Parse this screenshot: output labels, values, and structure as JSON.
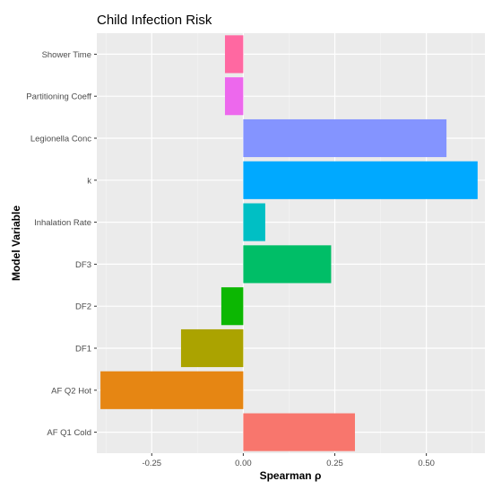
{
  "chart_data": {
    "type": "bar",
    "orientation": "horizontal",
    "title": "Child Infection Risk",
    "xlabel": "Spearman ρ",
    "ylabel": "Model Variable",
    "xlim": [
      -0.4,
      0.66
    ],
    "xticks": [
      -0.25,
      0.0,
      0.25,
      0.5
    ],
    "xtick_labels": [
      "-0.25",
      "0.00",
      "0.25",
      "0.50"
    ],
    "grid": true,
    "categories": [
      "AF Q1 Cold",
      "AF Q2 Hot",
      "DF1",
      "DF2",
      "DF3",
      "Inhalation Rate",
      "k",
      "Legionella Conc",
      "Partitioning Coeff",
      "Shower Time"
    ],
    "values": [
      0.305,
      -0.39,
      -0.17,
      -0.06,
      0.24,
      0.06,
      0.64,
      0.555,
      -0.05,
      -0.05
    ],
    "colors": [
      "#F8766D",
      "#E68613",
      "#ABA300",
      "#0CB702",
      "#00BE67",
      "#00BFC4",
      "#00A9FF",
      "#8494FF",
      "#ED68ED",
      "#FF68A1"
    ]
  }
}
